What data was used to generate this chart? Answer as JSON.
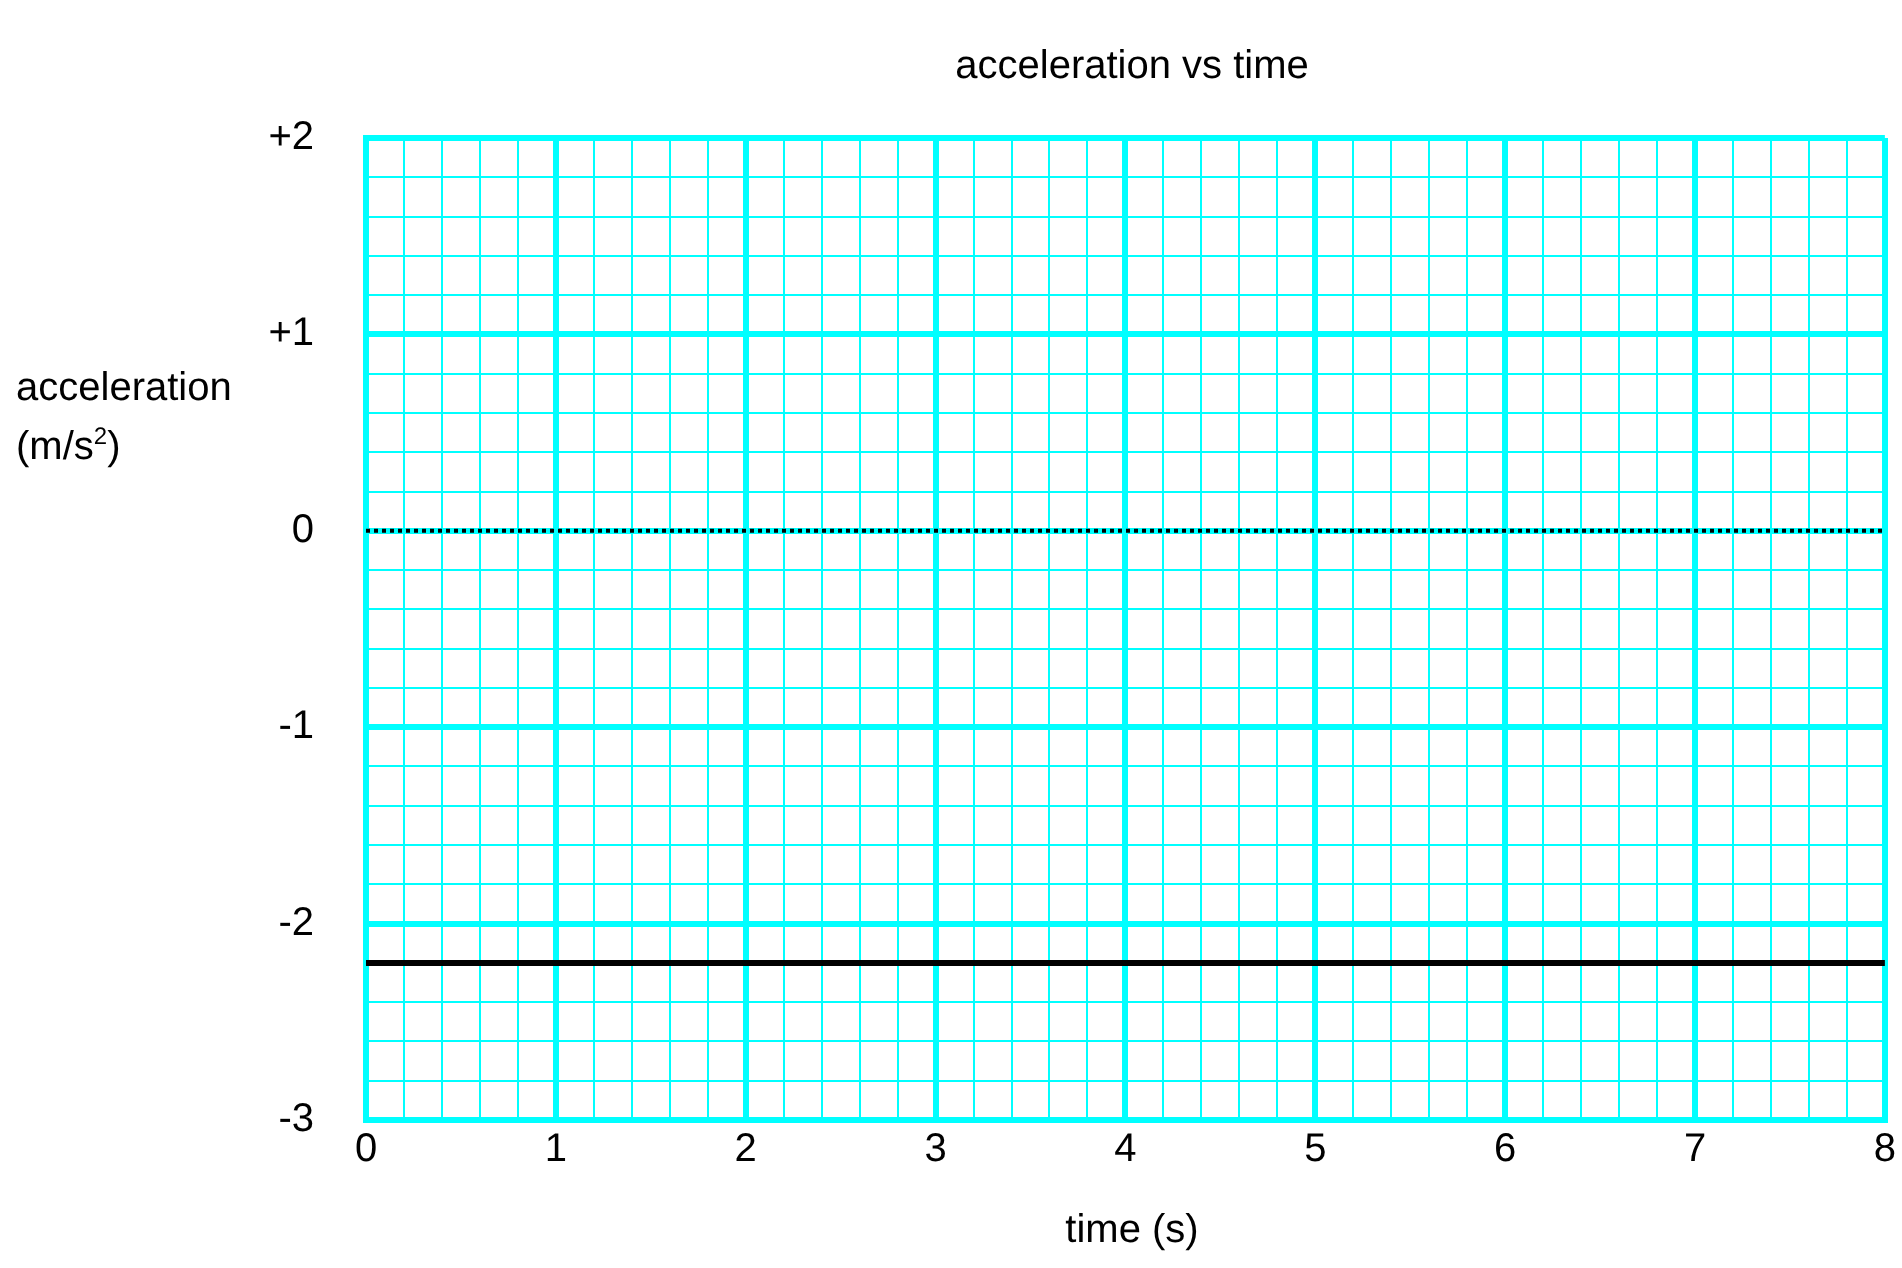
{
  "chart_data": {
    "type": "line",
    "title": "acceleration vs time",
    "xlabel": "time (s)",
    "ylabel": "acceleration (m/s$^{2}$)",
    "x": [
      0,
      8
    ],
    "series": [
      {
        "color": "#000000",
        "values": [
          -2.2,
          -2.2
        ]
      }
    ],
    "xlim": [
      0,
      8
    ],
    "ylim": [
      -3,
      2
    ],
    "xticks": [
      0,
      {
        "value": 0.2,
        "label": null
      },
      {
        "value": 0.4,
        "label": null
      },
      {
        "value": 0.6,
        "label": null
      },
      {
        "value": 0.8,
        "label": null
      },
      1,
      {
        "value": 1.2,
        "label": null
      },
      {
        "value": 1.4,
        "label": null
      },
      {
        "value": 1.6,
        "label": null
      },
      {
        "value": 1.8,
        "label": null
      },
      2,
      {
        "value": 2.2,
        "label": null
      },
      {
        "value": 2.4,
        "label": null
      },
      {
        "value": 2.6,
        "label": null
      },
      {
        "value": 2.8,
        "label": null
      },
      3,
      {
        "value": 3.2,
        "label": null
      },
      {
        "value": 3.4,
        "label": null
      },
      {
        "value": 3.6,
        "label": null
      },
      {
        "value": 3.8,
        "label": null
      },
      4,
      {
        "value": 4.2,
        "label": null
      },
      {
        "value": 4.4,
        "label": null
      },
      {
        "value": 4.6,
        "label": null
      },
      {
        "value": 4.8,
        "label": null
      },
      5,
      {
        "value": 5.2,
        "label": null
      },
      {
        "value": 5.4,
        "label": null
      },
      {
        "value": 5.6,
        "label": null
      },
      {
        "value": 5.8,
        "label": null
      },
      6,
      {
        "value": 6.2,
        "label": null
      },
      {
        "value": 6.4,
        "label": null
      },
      {
        "value": 6.6,
        "label": null
      },
      {
        "value": 6.8,
        "label": null
      },
      7,
      {
        "value": 7.2,
        "label": null
      },
      {
        "value": 7.4,
        "label": null
      },
      {
        "value": 7.6,
        "label": null
      },
      {
        "value": 7.8,
        "label": null
      },
      8
    ],
    "yticks": [
      -3,
      {
        "value": -2.8,
        "label": null
      },
      {
        "value": -2.6,
        "label": null
      },
      {
        "value": -2.4,
        "label": null
      },
      {
        "value": -2.2,
        "label": null
      },
      -2,
      {
        "value": -1.8,
        "label": null
      },
      {
        "value": -1.6,
        "label": null
      },
      {
        "value": -1.4,
        "label": null
      },
      {
        "value": -1.2,
        "label": null
      },
      -1,
      {
        "value": -0.8,
        "label": null
      },
      {
        "value": -0.6,
        "label": null
      },
      {
        "value": -0.4,
        "label": null
      },
      {
        "value": -0.2,
        "label": null
      },
      0,
      {
        "value": 0.2,
        "label": null
      },
      {
        "value": 0.4,
        "label": null
      },
      {
        "value": 0.6,
        "label": null
      },
      {
        "value": 0.8,
        "label": null
      },
      {
        "value": 1,
        "label": "+1"
      },
      {
        "value": 1.2,
        "label": null
      },
      {
        "value": 1.4,
        "label": null
      },
      {
        "value": 1.6,
        "label": null
      },
      {
        "value": 1.8,
        "label": null
      },
      {
        "value": 2,
        "label": "+2"
      }
    ],
    "grid": true,
    "marker": "none",
    "line_style": "solid",
    "legend": false,
    "ref_lines": [
      {
        "axis": "y",
        "value": 0,
        "color": "#000000",
        "line_style": "dotted"
      }
    ]
  }
}
